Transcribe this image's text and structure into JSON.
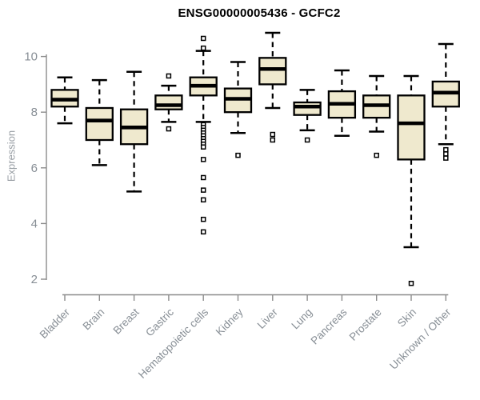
{
  "chart_data": {
    "type": "box",
    "title": "ENSG00000005436 - GCFC2",
    "ylabel": "Expression",
    "xlabel": "",
    "ylim": [
      2,
      10
    ],
    "yticks": [
      2,
      4,
      6,
      8,
      10
    ],
    "grid": false,
    "legend": "none",
    "categories": [
      "Bladder",
      "Brain",
      "Breast",
      "Gastric",
      "Hematopoietic cells",
      "Kidney",
      "Liver",
      "Lung",
      "Pancreas",
      "Prostate",
      "Skin",
      "Unknown / Other"
    ],
    "series": [
      {
        "label": "Bladder",
        "low": 7.6,
        "q1": 8.2,
        "median": 8.45,
        "q3": 8.8,
        "high": 9.25,
        "outliers": []
      },
      {
        "label": "Brain",
        "low": 6.1,
        "q1": 7.0,
        "median": 7.7,
        "q3": 8.15,
        "high": 9.15,
        "outliers": []
      },
      {
        "label": "Breast",
        "low": 5.15,
        "q1": 6.85,
        "median": 7.45,
        "q3": 8.1,
        "high": 9.45,
        "outliers": []
      },
      {
        "label": "Gastric",
        "low": 7.65,
        "q1": 8.1,
        "median": 8.25,
        "q3": 8.6,
        "high": 8.95,
        "outliers": [
          9.3,
          7.4
        ]
      },
      {
        "label": "Hematopoietic cells",
        "low": 7.65,
        "q1": 8.6,
        "median": 8.95,
        "q3": 9.25,
        "high": 10.2,
        "outliers": [
          10.65,
          10.3,
          7.55,
          7.45,
          7.35,
          7.25,
          7.15,
          7.05,
          6.95,
          6.85,
          6.75,
          6.3,
          5.65,
          5.2,
          4.85,
          4.15,
          3.7
        ]
      },
      {
        "label": "Kidney",
        "low": 7.25,
        "q1": 8.0,
        "median": 8.48,
        "q3": 8.85,
        "high": 9.8,
        "outliers": [
          6.45
        ]
      },
      {
        "label": "Liver",
        "low": 8.15,
        "q1": 9.0,
        "median": 9.55,
        "q3": 9.95,
        "high": 10.85,
        "outliers": [
          7.2,
          7.0
        ]
      },
      {
        "label": "Lung",
        "low": 7.35,
        "q1": 7.9,
        "median": 8.2,
        "q3": 8.35,
        "high": 8.8,
        "outliers": [
          7.0
        ]
      },
      {
        "label": "Pancreas",
        "low": 7.15,
        "q1": 7.8,
        "median": 8.3,
        "q3": 8.75,
        "high": 9.5,
        "outliers": []
      },
      {
        "label": "Prostate",
        "low": 7.3,
        "q1": 7.8,
        "median": 8.25,
        "q3": 8.6,
        "high": 9.3,
        "outliers": [
          6.45
        ]
      },
      {
        "label": "Skin",
        "low": 3.15,
        "q1": 6.3,
        "median": 7.6,
        "q3": 8.6,
        "high": 9.3,
        "outliers": [
          1.85
        ]
      },
      {
        "label": "Unknown / Other",
        "low": 6.85,
        "q1": 8.2,
        "median": 8.7,
        "q3": 9.1,
        "high": 10.45,
        "outliers": [
          6.65,
          6.5,
          6.35
        ]
      }
    ],
    "colors": {
      "box_fill": "#EFE9CE",
      "box_stroke": "#000000",
      "median": "#000000",
      "axis": "#8C8C8C",
      "tick_label": "#878E95",
      "axis_title": "#989EA4",
      "title": "#000000",
      "background": "#FFFFFF"
    }
  }
}
